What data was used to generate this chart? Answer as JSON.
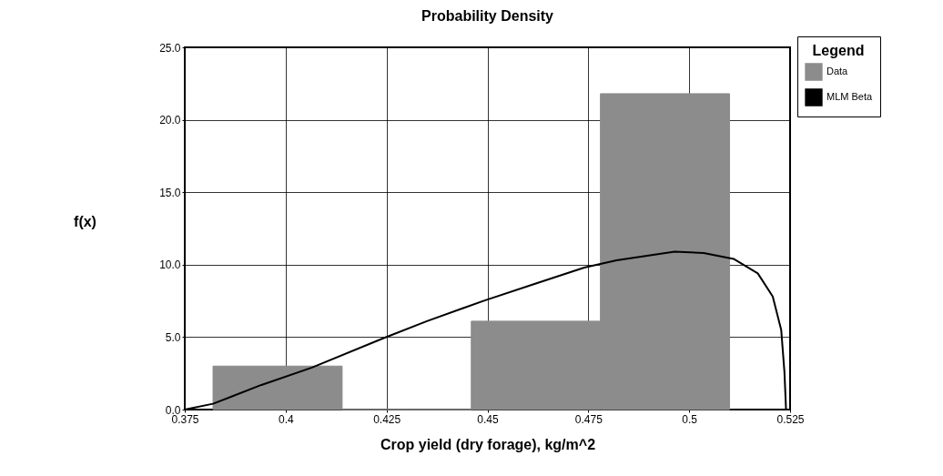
{
  "chart_data": {
    "type": "histogram",
    "title": "Probability Density",
    "xlabel": "Crop yield (dry forage), kg/m^2",
    "ylabel": "f(x)",
    "legend_title": "Legend",
    "bins": [
      0.382,
      0.414,
      0.446,
      0.478,
      0.51
    ],
    "series": [
      {
        "name": "Data",
        "color": "#8c8c8c",
        "values": [
          3.0,
          0,
          6.1,
          21.8
        ]
      },
      {
        "name": "MLM Beta",
        "type": "line",
        "color": "#000000",
        "x": [
          0.375,
          0.382,
          0.394,
          0.4065,
          0.424,
          0.435,
          0.449,
          0.462,
          0.474,
          0.482,
          0.4964,
          0.5036,
          0.511,
          0.517,
          0.5207,
          0.5228,
          0.5236,
          0.524
        ],
        "values": [
          0,
          0.4,
          1.7,
          2.9,
          4.9,
          6.1,
          7.5,
          8.7,
          9.8,
          10.3,
          10.9,
          10.8,
          10.4,
          9.4,
          7.8,
          5.5,
          2.6,
          0
        ]
      }
    ],
    "xlim": [
      0.375,
      0.525
    ],
    "xticks": [
      0.375,
      0.4,
      0.425,
      0.45,
      0.475,
      0.5,
      0.525
    ],
    "ylim": [
      0,
      25
    ],
    "yticks": [
      {
        "value": 0,
        "label": "0.0"
      },
      {
        "value": 5,
        "label": "5.0"
      },
      {
        "value": 10,
        "label": "10.0"
      },
      {
        "value": 15,
        "label": "15.0"
      },
      {
        "value": 20,
        "label": "20.0"
      },
      {
        "value": 25,
        "label": "25.0"
      }
    ],
    "grid": true,
    "legend": "top right",
    "marker": "none",
    "line_style": "solid"
  }
}
